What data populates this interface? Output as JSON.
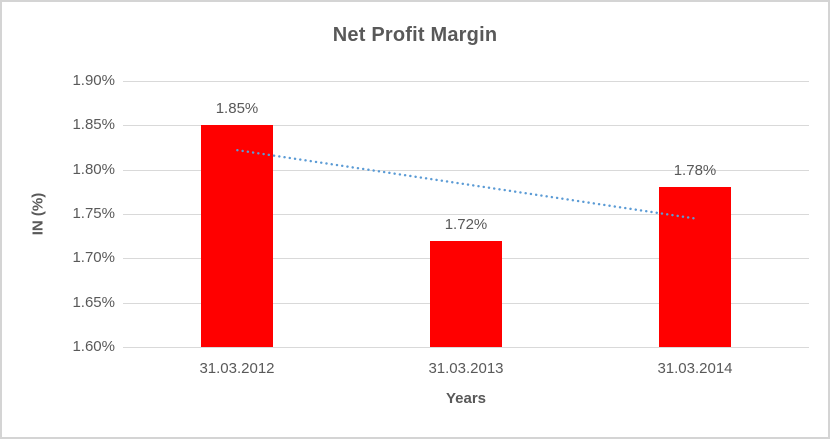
{
  "chart_data": {
    "type": "bar",
    "title": "Net Profit Margin",
    "xlabel": "Years",
    "ylabel": "IN (%)",
    "categories": [
      "31.03.2012",
      "31.03.2013",
      "31.03.2014"
    ],
    "values": [
      1.85,
      1.72,
      1.78
    ],
    "data_labels": [
      "1.85%",
      "1.72%",
      "1.78%"
    ],
    "ylim": [
      1.6,
      1.9
    ],
    "ytick_step": 0.05,
    "yticks": [
      1.6,
      1.65,
      1.7,
      1.75,
      1.8,
      1.85,
      1.9
    ],
    "ytick_labels": [
      "1.60%",
      "1.65%",
      "1.70%",
      "1.75%",
      "1.80%",
      "1.85%",
      "1.90%"
    ],
    "grid": true,
    "legend": false,
    "bar_color": "#ff0000",
    "gridline_color": "#d9d9d9",
    "text_color": "#595959",
    "trendline": {
      "type": "linear",
      "style": "dotted",
      "color": "#5b9bd5",
      "start_value": 1.822,
      "end_value": 1.745
    }
  }
}
